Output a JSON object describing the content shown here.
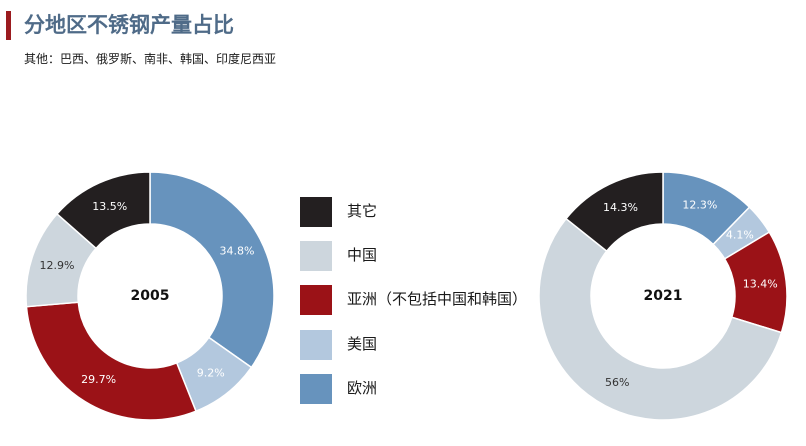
{
  "header": {
    "title": "分地区不锈钢产量占比",
    "subtitle": "其他：巴西、俄罗斯、南非、韩国、印度尼西亚"
  },
  "colors": {
    "accent": "#9b1b1f",
    "title": "#4f6b88",
    "其它": "#231f20",
    "中国": "#cdd6dd",
    "亚洲（不包括中国和韩国）": "#9b1217",
    "美国": "#b3c8de",
    "欧洲": "#6793bd"
  },
  "legend": {
    "items": [
      {
        "label": "其它",
        "color": "#231f20"
      },
      {
        "label": "中国",
        "color": "#cdd6dd"
      },
      {
        "label": "亚洲（不包括中国和韩国）",
        "color": "#9b1217"
      },
      {
        "label": "美国",
        "color": "#b3c8de"
      },
      {
        "label": "欧洲",
        "color": "#6793bd"
      }
    ]
  },
  "chart_data": [
    {
      "type": "pie",
      "center_label": "2005",
      "slices": [
        {
          "category": "欧洲",
          "value": 34.8,
          "label": "34.8%"
        },
        {
          "category": "美国",
          "value": 9.2,
          "label": "9.2%"
        },
        {
          "category": "亚洲（不包括中国和韩国）",
          "value": 29.7,
          "label": "29.7%"
        },
        {
          "category": "中国",
          "value": 12.9,
          "label": "12.9%"
        },
        {
          "category": "其它",
          "value": 13.5,
          "label": "13.5%"
        }
      ]
    },
    {
      "type": "pie",
      "center_label": "2021",
      "slices": [
        {
          "category": "欧洲",
          "value": 12.3,
          "label": "12.3%"
        },
        {
          "category": "美国",
          "value": 4.1,
          "label": "4.1%"
        },
        {
          "category": "亚洲（不包括中国和韩国）",
          "value": 13.4,
          "label": "13.4%"
        },
        {
          "category": "中国",
          "value": 56,
          "label": "56%"
        },
        {
          "category": "其它",
          "value": 14.3,
          "label": "14.3%"
        }
      ]
    }
  ]
}
